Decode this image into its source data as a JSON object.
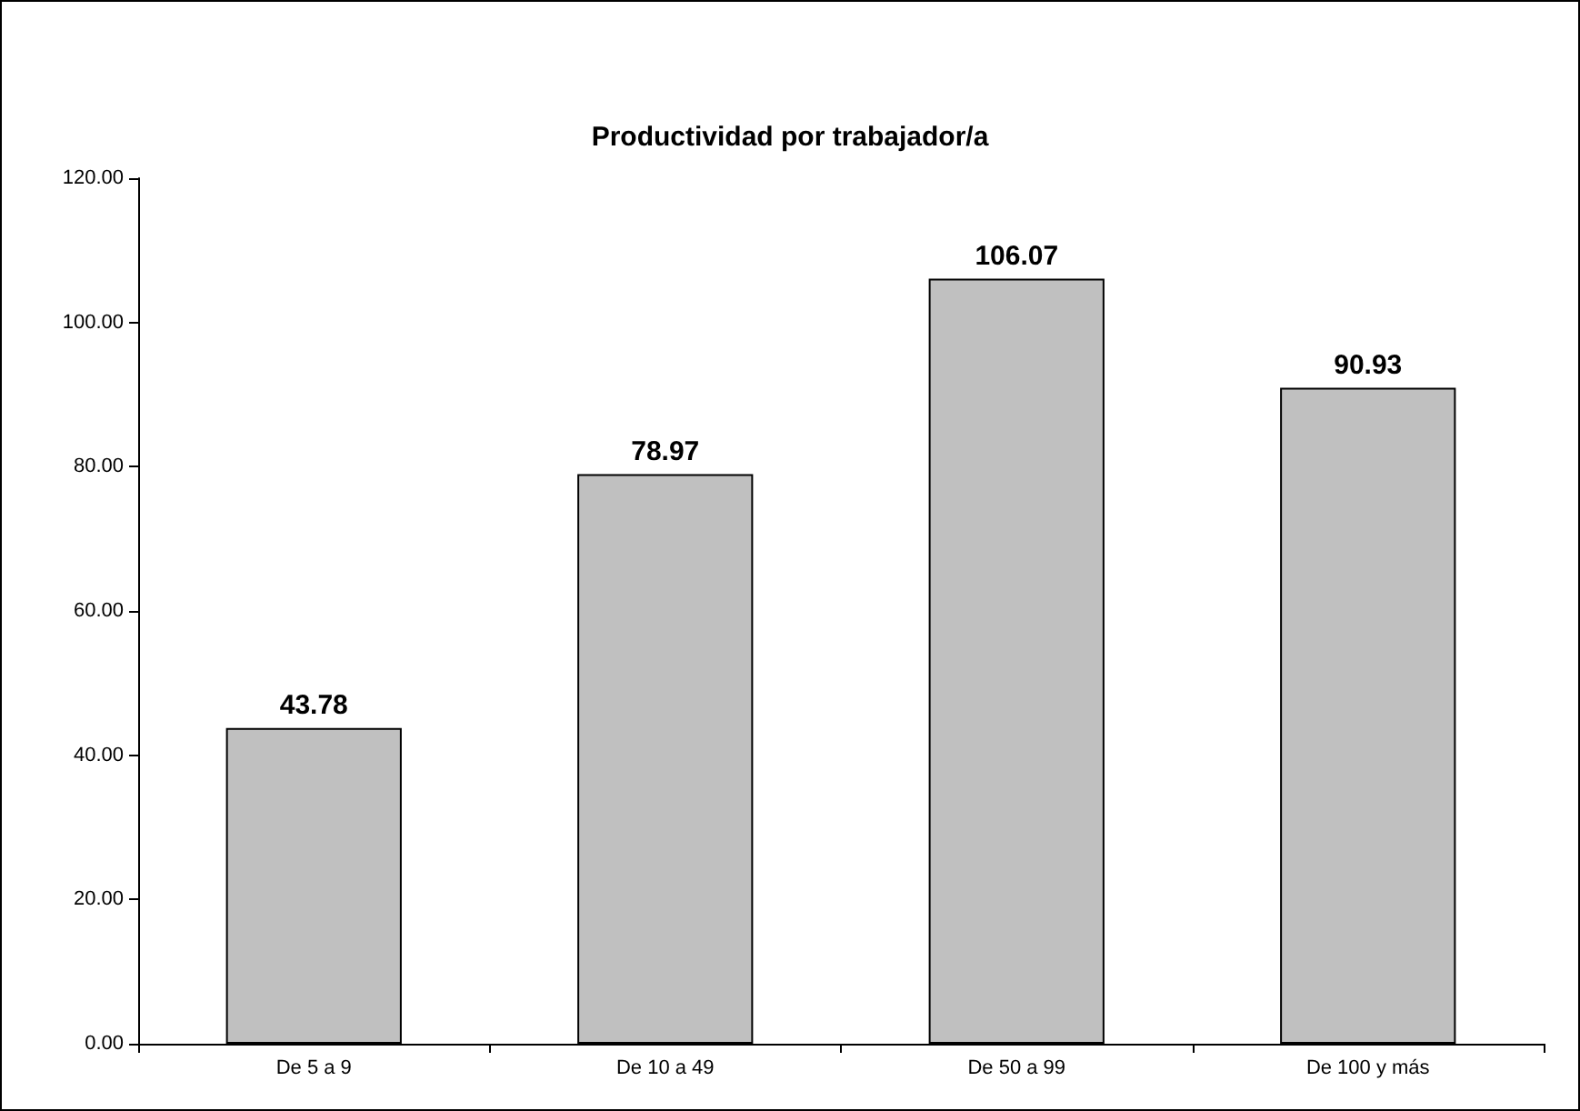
{
  "chart_data": {
    "type": "bar",
    "title": "Productividad por trabajador/a",
    "categories": [
      "De 5 a 9",
      "De 10 a 49",
      "De 50 a 99",
      "De 100 y más"
    ],
    "values": [
      43.78,
      78.97,
      106.07,
      90.93
    ],
    "color": "#c0c0c0",
    "ylim": [
      0,
      120
    ],
    "yticks": [
      {
        "value": 0,
        "label": "0.00"
      },
      {
        "value": 20,
        "label": "20.00"
      },
      {
        "value": 40,
        "label": "40.00"
      },
      {
        "value": 60,
        "label": "60.00"
      },
      {
        "value": 80,
        "label": "80.00"
      },
      {
        "value": 100,
        "label": "100.00"
      },
      {
        "value": 120,
        "label": "120.00"
      }
    ],
    "data_labels": true,
    "grid": false
  }
}
